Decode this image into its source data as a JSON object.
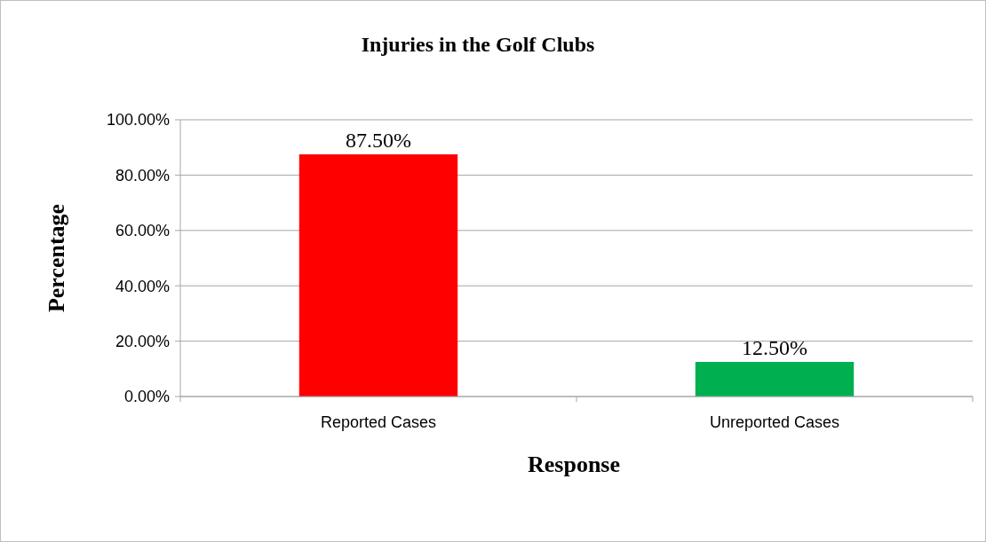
{
  "chart_data": {
    "type": "bar",
    "title": "Injuries in the Golf Clubs",
    "xlabel": "Response",
    "ylabel": "Percentage",
    "categories": [
      "Reported Cases",
      "Unreported Cases"
    ],
    "values": [
      87.5,
      12.5
    ],
    "colors": [
      "#ff0000",
      "#00b050"
    ],
    "value_labels": [
      "87.50%",
      "12.50%"
    ],
    "ylim": [
      0,
      100
    ],
    "yticks": [
      {
        "value": 0,
        "label": "0.00%"
      },
      {
        "value": 20,
        "label": "20.00%"
      },
      {
        "value": 40,
        "label": "40.00%"
      },
      {
        "value": 60,
        "label": "60.00%"
      },
      {
        "value": 80,
        "label": "80.00%"
      },
      {
        "value": 100,
        "label": "100.00%"
      }
    ],
    "grid": "y"
  }
}
